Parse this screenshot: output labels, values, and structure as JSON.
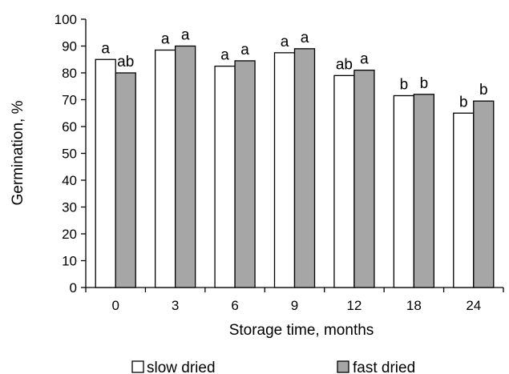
{
  "chart_data": {
    "type": "bar",
    "title": "",
    "xlabel": "Storage time, months",
    "ylabel": "Germination,  %",
    "categories": [
      "0",
      "3",
      "6",
      "9",
      "12",
      "18",
      "24"
    ],
    "ylim": [
      0,
      100
    ],
    "yticks": [
      0,
      10,
      20,
      30,
      40,
      50,
      60,
      70,
      80,
      90,
      100
    ],
    "grid": false,
    "legend_position": "bottom",
    "series": [
      {
        "name": "slow dried",
        "color": "#ffffff",
        "values": [
          85,
          88.5,
          82.5,
          87.5,
          79,
          71.5,
          65
        ],
        "labels": [
          "a",
          "a",
          "a",
          "a",
          "ab",
          "b",
          "b"
        ]
      },
      {
        "name": "fast dried",
        "color": "#a6a6a6",
        "values": [
          80,
          90,
          84.5,
          89,
          81,
          72,
          69.5
        ],
        "labels": [
          "ab",
          "a",
          "a",
          "a",
          "a",
          "b",
          "b"
        ]
      }
    ]
  }
}
